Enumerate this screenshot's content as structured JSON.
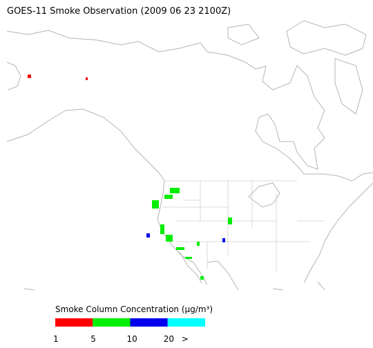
{
  "title": "GOES-11 Smoke Observation (2009 06 23  2100Z)",
  "legend": {
    "title": "Smoke Column Concentration (μg/m³)",
    "colors": [
      "#ff0000",
      "#00ee00",
      "#0000ee",
      "#00ffff"
    ],
    "ticks": [
      1,
      5,
      10,
      20,
      ">"
    ]
  }
}
